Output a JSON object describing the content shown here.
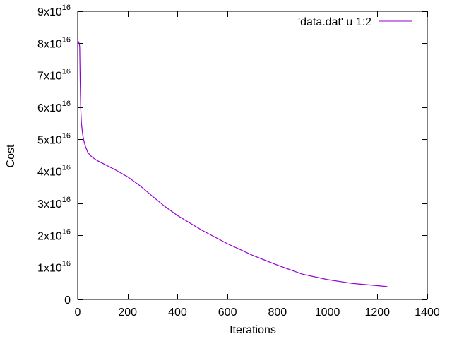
{
  "chart_data": {
    "type": "line",
    "title": "",
    "xlabel": "Iterations",
    "ylabel": "Cost",
    "xlim": [
      0,
      1400
    ],
    "ylim": [
      0,
      9e+16
    ],
    "x_ticks": [
      0,
      200,
      400,
      600,
      800,
      1000,
      1200,
      1400
    ],
    "x_tick_labels": [
      "0",
      "200",
      "400",
      "600",
      "800",
      "1000",
      "1200",
      "1400"
    ],
    "y_ticks": [
      0,
      1e+16,
      2e+16,
      3e+16,
      4e+16,
      5e+16,
      6e+16,
      7e+16,
      8e+16,
      9e+16
    ],
    "y_tick_labels": [
      {
        "mantissa": "0",
        "exponent": ""
      },
      {
        "mantissa": "1x10",
        "exponent": "16"
      },
      {
        "mantissa": "2x10",
        "exponent": "16"
      },
      {
        "mantissa": "3x10",
        "exponent": "16"
      },
      {
        "mantissa": "4x10",
        "exponent": "16"
      },
      {
        "mantissa": "5x10",
        "exponent": "16"
      },
      {
        "mantissa": "6x10",
        "exponent": "16"
      },
      {
        "mantissa": "7x10",
        "exponent": "16"
      },
      {
        "mantissa": "8x10",
        "exponent": "16"
      },
      {
        "mantissa": "9x10",
        "exponent": "16"
      }
    ],
    "grid": false,
    "legend_position": "top-right",
    "series": [
      {
        "name": "'data.dat' u 1:2",
        "color": "#9400d3",
        "x": [
          0,
          3,
          6,
          8,
          10,
          12,
          15,
          20,
          25,
          30,
          40,
          50,
          60,
          80,
          100,
          150,
          200,
          250,
          300,
          350,
          400,
          500,
          600,
          700,
          800,
          900,
          1000,
          1100,
          1200,
          1240
        ],
        "y": [
          8.1e+16,
          8.05e+16,
          8e+16,
          7.9e+16,
          6.8e+16,
          6e+16,
          5.5e+16,
          5.15e+16,
          4.95e+16,
          4.8e+16,
          4.6e+16,
          4.5e+16,
          4.43e+16,
          4.33e+16,
          4.25e+16,
          4.05e+16,
          3.83e+16,
          3.55e+16,
          3.22e+16,
          2.9e+16,
          2.62e+16,
          2.15e+16,
          1.74e+16,
          1.38e+16,
          1.07e+16,
          7900000000000000.0,
          6200000000000000.0,
          5000000000000000.0,
          4300000000000000.0,
          4000000000000000.0
        ]
      }
    ]
  }
}
